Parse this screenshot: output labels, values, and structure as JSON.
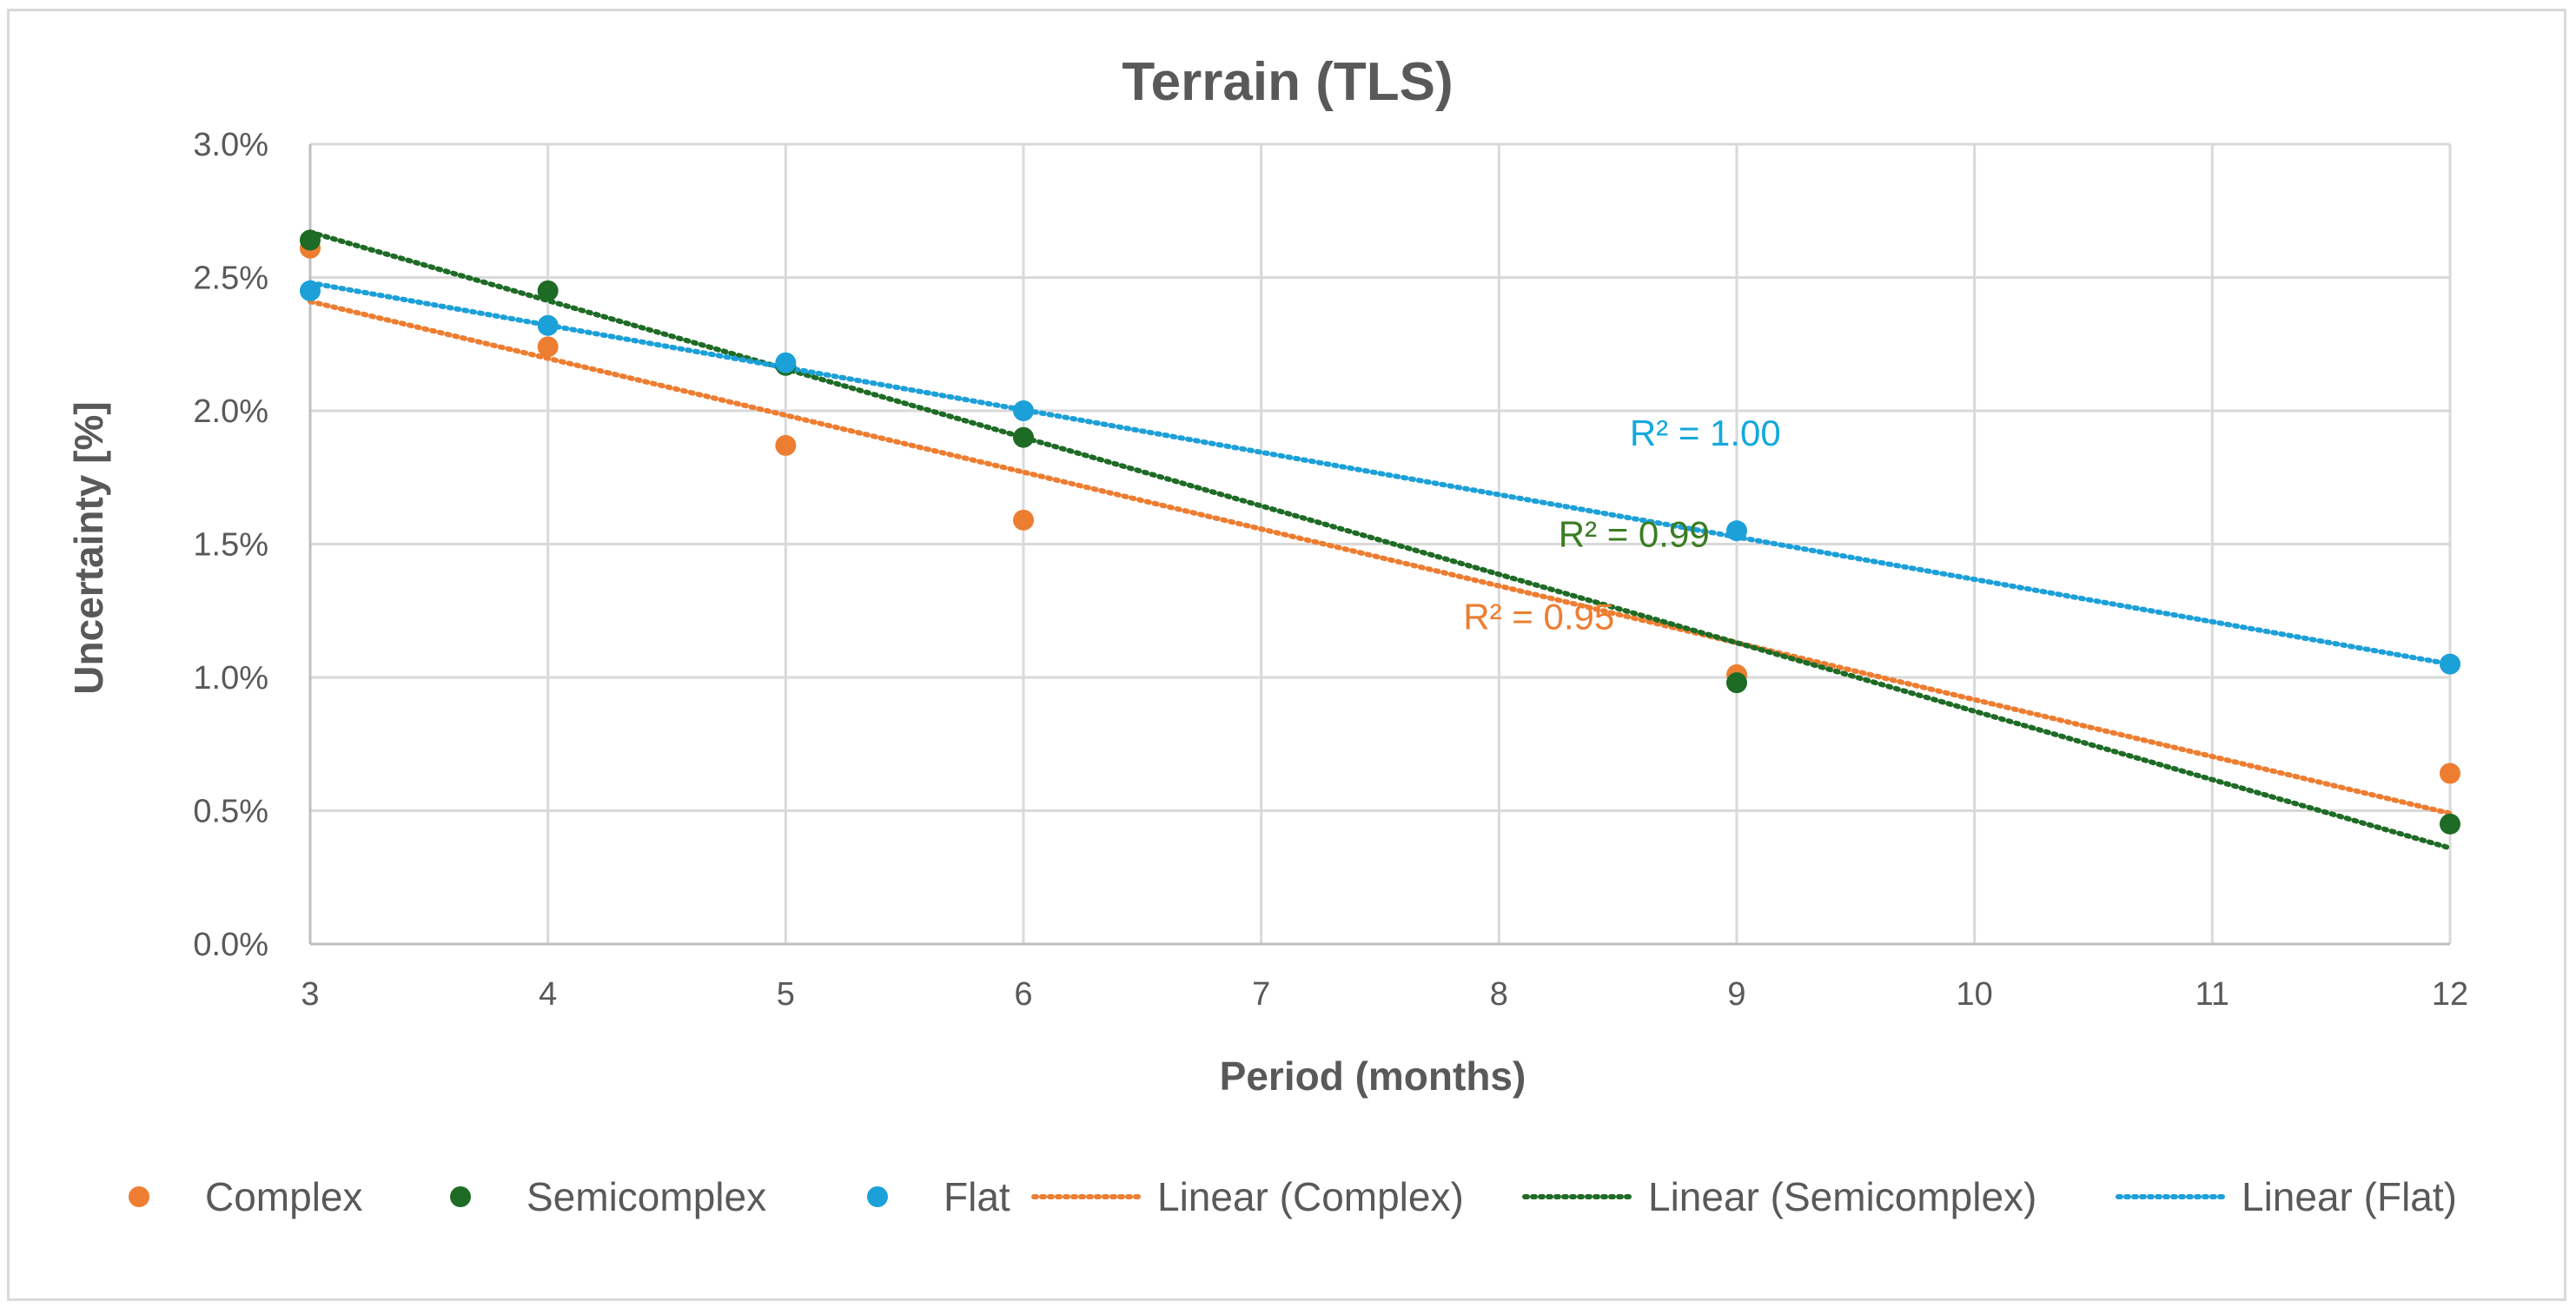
{
  "chart_data": {
    "type": "scatter",
    "title": "Terrain (TLS)",
    "xlabel": "Period (months)",
    "ylabel": "Uncertainty [%]",
    "xlim": [
      3,
      12
    ],
    "ylim": [
      0.0,
      3.0
    ],
    "x_ticks": [
      3,
      4,
      5,
      6,
      7,
      8,
      9,
      10,
      11,
      12
    ],
    "x_tick_labels": [
      "3",
      "4",
      "5",
      "6",
      "7",
      "8",
      "9",
      "10",
      "11",
      "12"
    ],
    "y_ticks": [
      0.0,
      0.5,
      1.0,
      1.5,
      2.0,
      2.5,
      3.0
    ],
    "y_tick_labels": [
      "0.0%",
      "0.5%",
      "1.0%",
      "1.5%",
      "2.0%",
      "2.5%",
      "3.0%"
    ],
    "grid": true,
    "legend_position": "bottom",
    "series": [
      {
        "name": "Complex",
        "color": "#ED7D31",
        "x": [
          3,
          4,
          5,
          6,
          9,
          12
        ],
        "y": [
          2.61,
          2.24,
          1.87,
          1.59,
          1.01,
          0.64
        ],
        "trendline": {
          "name": "Linear (Complex)",
          "from": [
            3,
            2.41
          ],
          "to": [
            12,
            0.49
          ],
          "r2_label": "R² = 0.95",
          "r2_at": [
            7.85,
            1.18
          ]
        }
      },
      {
        "name": "Semicomplex",
        "color": "#1E6B25",
        "x": [
          3,
          4,
          5,
          6,
          9,
          12
        ],
        "y": [
          2.64,
          2.45,
          2.17,
          1.9,
          0.98,
          0.45
        ],
        "trendline": {
          "name": "Linear (Semicomplex)",
          "from": [
            3,
            2.67
          ],
          "to": [
            12,
            0.36
          ],
          "r2_label": "R² = 0.99",
          "r2_at": [
            8.25,
            1.49
          ],
          "label_color": "#3A7D22"
        }
      },
      {
        "name": "Flat",
        "color": "#1CA0D8",
        "x": [
          3,
          4,
          5,
          6,
          9,
          12
        ],
        "y": [
          2.45,
          2.32,
          2.18,
          2.0,
          1.55,
          1.05
        ],
        "trendline": {
          "name": "Linear (Flat)",
          "from": [
            3,
            2.48
          ],
          "to": [
            12,
            1.05
          ],
          "r2_label": "R² = 1.00",
          "r2_at": [
            8.55,
            1.87
          ],
          "label_color": "#13A9DC"
        }
      }
    ]
  }
}
